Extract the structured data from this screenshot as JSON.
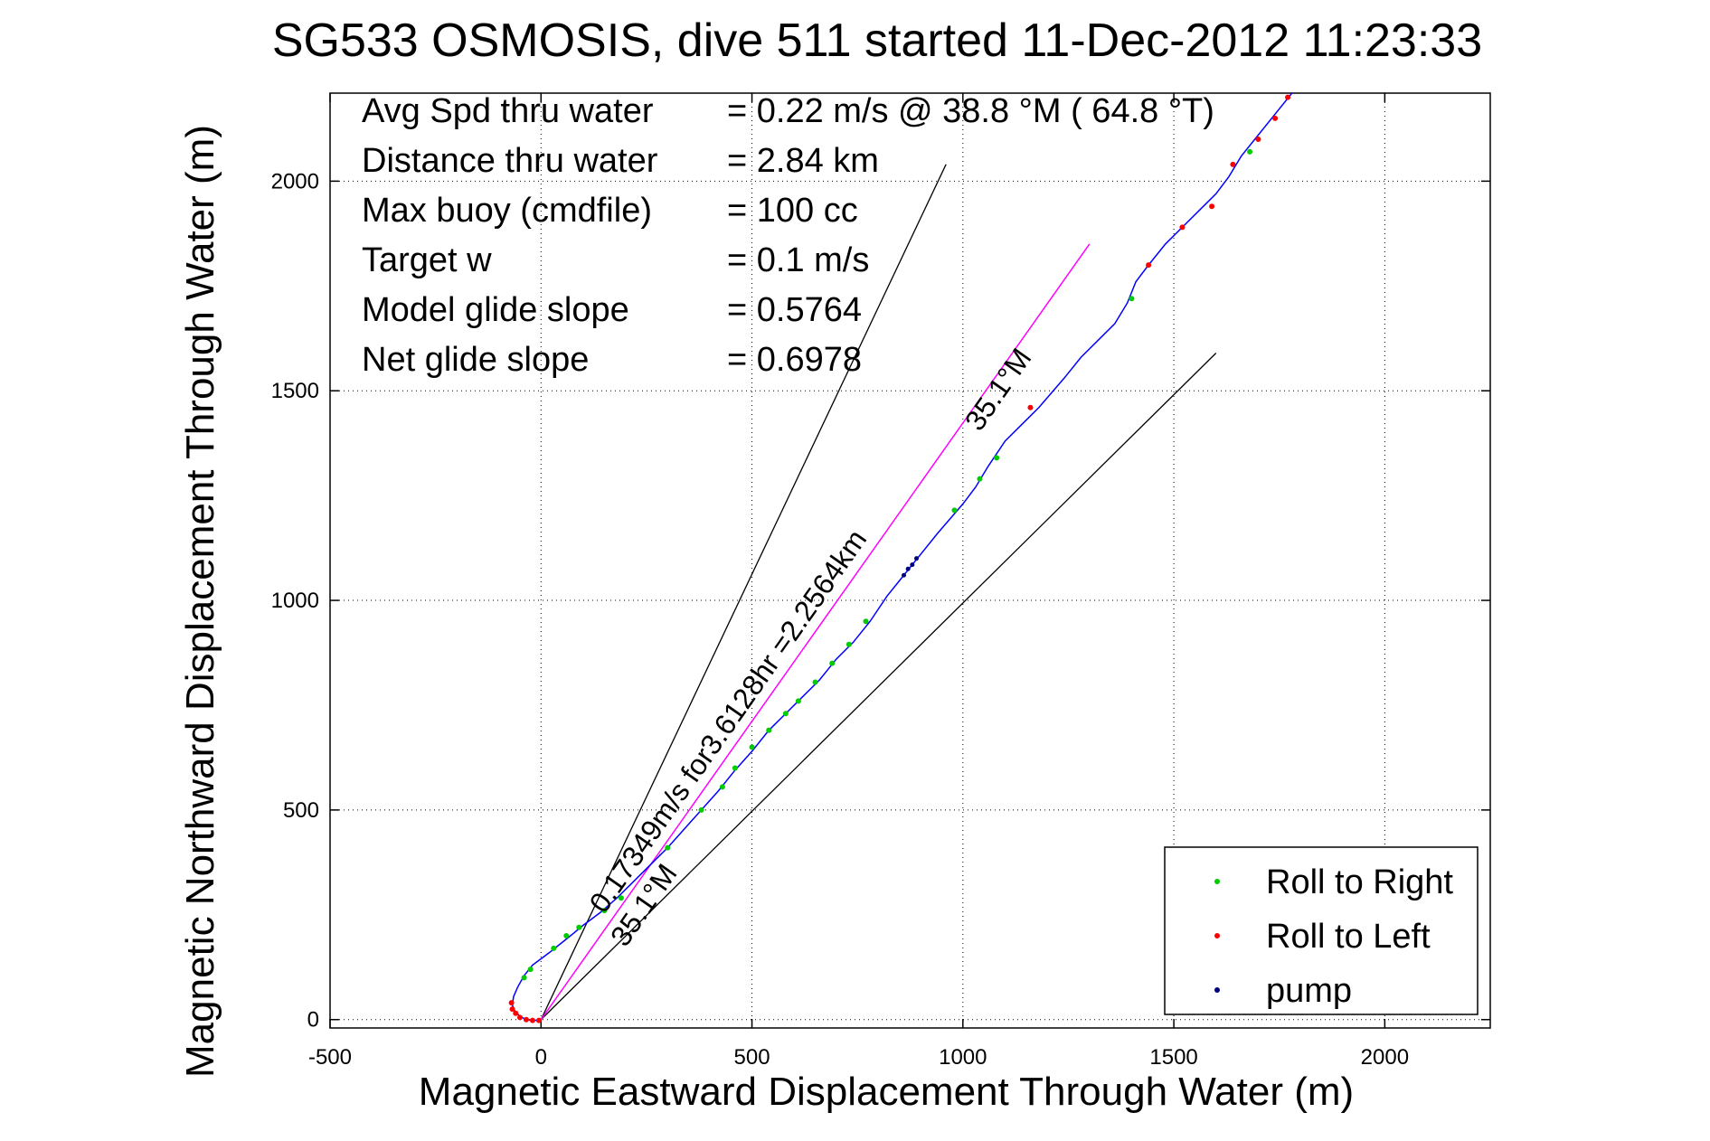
{
  "chart_data": {
    "type": "line",
    "title": "SG533 OSMOSIS, dive 511 started 11-Dec-2012 11:23:33",
    "xlabel": "Magnetic Eastward Displacement Through Water (m)",
    "ylabel": "Magnetic Northward Displacement Through Water (m)",
    "xlim": [
      -500,
      2250
    ],
    "ylim": [
      -20,
      2210
    ],
    "xticks": [
      -500,
      0,
      500,
      1000,
      1500,
      2000
    ],
    "yticks": [
      0,
      500,
      1000,
      1500,
      2000
    ],
    "xtick_labels": [
      "-500",
      "0",
      "500",
      "1000",
      "1500",
      "2000"
    ],
    "ytick_labels": [
      "0",
      "500",
      "1000",
      "1500",
      "2000"
    ],
    "grid": true,
    "legend_position": "bottom-right",
    "stats": [
      {
        "label": "Avg Spd thru water",
        "value": "=  0.22 m/s @  38.8 °M ( 64.8 °T)"
      },
      {
        "label": "Distance thru water",
        "value": "=  2.84 km"
      },
      {
        "label": "Max buoy (cmdfile)",
        "value": "= 100 cc"
      },
      {
        "label": "Target w",
        "value": "= 0.1 m/s"
      },
      {
        "label": "Model glide slope",
        "value": "= 0.5764"
      },
      {
        "label": "Net glide slope",
        "value": "= 0.6978"
      }
    ],
    "track": {
      "color": "#0000ff",
      "points": [
        [
          0,
          0
        ],
        [
          -15,
          -2
        ],
        [
          -35,
          0
        ],
        [
          -50,
          8
        ],
        [
          -62,
          20
        ],
        [
          -68,
          35
        ],
        [
          -65,
          55
        ],
        [
          -55,
          78
        ],
        [
          -40,
          105
        ],
        [
          -20,
          130
        ],
        [
          0,
          145
        ],
        [
          20,
          160
        ],
        [
          45,
          180
        ],
        [
          70,
          200
        ],
        [
          100,
          225
        ],
        [
          140,
          255
        ],
        [
          180,
          290
        ],
        [
          220,
          330
        ],
        [
          260,
          370
        ],
        [
          300,
          410
        ],
        [
          340,
          455
        ],
        [
          380,
          500
        ],
        [
          420,
          545
        ],
        [
          460,
          595
        ],
        [
          500,
          640
        ],
        [
          540,
          690
        ],
        [
          580,
          730
        ],
        [
          620,
          770
        ],
        [
          660,
          810
        ],
        [
          700,
          860
        ],
        [
          740,
          900
        ],
        [
          780,
          950
        ],
        [
          820,
          1010
        ],
        [
          860,
          1060
        ],
        [
          900,
          1110
        ],
        [
          940,
          1160
        ],
        [
          970,
          1195
        ],
        [
          1000,
          1230
        ],
        [
          1030,
          1270
        ],
        [
          1060,
          1320
        ],
        [
          1100,
          1380
        ],
        [
          1140,
          1420
        ],
        [
          1180,
          1460
        ],
        [
          1210,
          1495
        ],
        [
          1240,
          1530
        ],
        [
          1280,
          1580
        ],
        [
          1320,
          1620
        ],
        [
          1360,
          1660
        ],
        [
          1390,
          1710
        ],
        [
          1410,
          1760
        ],
        [
          1440,
          1800
        ],
        [
          1480,
          1850
        ],
        [
          1520,
          1890
        ],
        [
          1560,
          1930
        ],
        [
          1600,
          1970
        ],
        [
          1630,
          2010
        ],
        [
          1660,
          2060
        ],
        [
          1700,
          2110
        ],
        [
          1740,
          2160
        ],
        [
          1780,
          2210
        ]
      ]
    },
    "roll_right_points": [
      [
        -40,
        100
      ],
      [
        -25,
        120
      ],
      [
        30,
        170
      ],
      [
        60,
        200
      ],
      [
        90,
        220
      ],
      [
        150,
        260
      ],
      [
        190,
        290
      ],
      [
        300,
        410
      ],
      [
        380,
        500
      ],
      [
        430,
        555
      ],
      [
        460,
        600
      ],
      [
        500,
        650
      ],
      [
        540,
        690
      ],
      [
        580,
        730
      ],
      [
        610,
        760
      ],
      [
        650,
        805
      ],
      [
        690,
        850
      ],
      [
        730,
        895
      ],
      [
        770,
        950
      ],
      [
        980,
        1215
      ],
      [
        1040,
        1290
      ],
      [
        1080,
        1340
      ],
      [
        1400,
        1720
      ],
      [
        1680,
        2070
      ]
    ],
    "roll_left_points": [
      [
        -70,
        40
      ],
      [
        -68,
        25
      ],
      [
        -60,
        15
      ],
      [
        -50,
        5
      ],
      [
        -35,
        0
      ],
      [
        -20,
        -2
      ],
      [
        -5,
        -2
      ],
      [
        1160,
        1460
      ],
      [
        1440,
        1800
      ],
      [
        1520,
        1890
      ],
      [
        1590,
        1940
      ],
      [
        1640,
        2040
      ],
      [
        1700,
        2100
      ],
      [
        1740,
        2150
      ],
      [
        1770,
        2200
      ]
    ],
    "pump_points": [
      [
        860,
        1060
      ],
      [
        870,
        1075
      ],
      [
        880,
        1085
      ],
      [
        890,
        1100
      ]
    ],
    "reference_lines": [
      {
        "kind": "heading",
        "from": [
          0,
          0
        ],
        "to": [
          960,
          2040
        ],
        "color": "#000000"
      },
      {
        "kind": "heading",
        "from": [
          0,
          0
        ],
        "to": [
          1600,
          1590
        ],
        "color": "#000000"
      },
      {
        "kind": "drift",
        "from": [
          0,
          0
        ],
        "to": [
          1300,
          1850
        ],
        "color": "#ff00ff"
      }
    ],
    "annotations": [
      {
        "text": "0.17349m/s for3.6128hr =2.2564km",
        "at": [
          150,
          250
        ],
        "angle_deg": -55
      },
      {
        "text": "35.1°M",
        "at": [
          200,
          170
        ],
        "angle_deg": -55
      },
      {
        "text": "35.1°M",
        "at": [
          1040,
          1400
        ],
        "angle_deg": -55
      }
    ],
    "legend": [
      {
        "label": "Roll to Right",
        "color": "#00cc00"
      },
      {
        "label": "Roll to Left",
        "color": "#ff0000"
      },
      {
        "label": "pump",
        "color": "#000080"
      }
    ]
  }
}
